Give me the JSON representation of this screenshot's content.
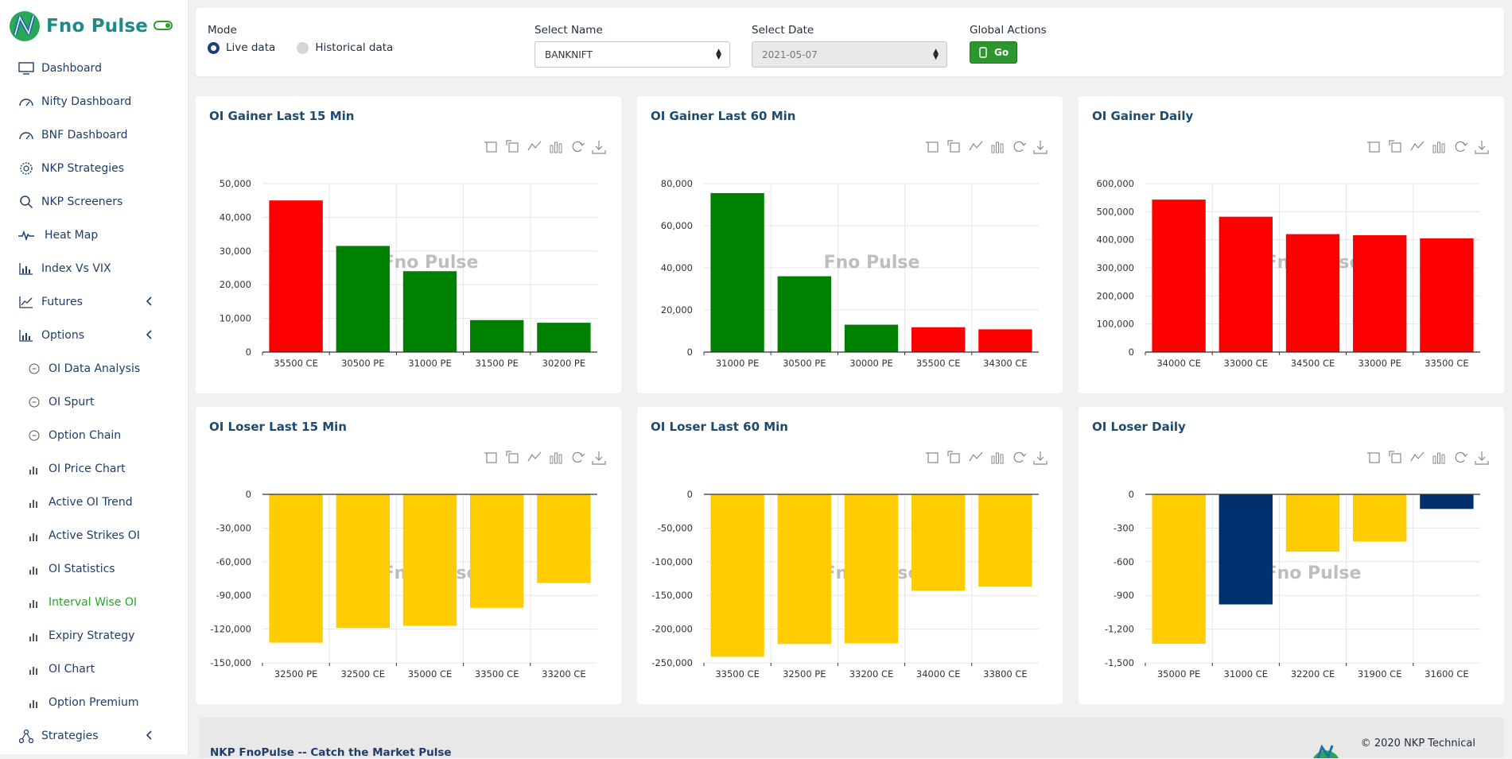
{
  "brand": {
    "name": "Fno Pulse"
  },
  "nav": {
    "dashboard": "Dashboard",
    "nifty": "Nifty Dashboard",
    "bnf": "BNF Dashboard",
    "strategies_nkp": "NKP Strategies",
    "screeners": "NKP Screeners",
    "heatmap": "Heat Map",
    "index_vix": "Index Vs VIX",
    "futures": "Futures",
    "options": "Options",
    "oi_data": "OI Data Analysis",
    "oi_spurt": "OI Spurt",
    "option_chain": "Option Chain",
    "oi_price_chart": "OI Price Chart",
    "active_oi_trend": "Active OI Trend",
    "active_strikes": "Active Strikes OI",
    "oi_stats": "OI Statistics",
    "interval_oi": "Interval Wise OI",
    "expiry_strategy": "Expiry Strategy",
    "oi_chart": "OI Chart",
    "option_premium": "Option Premium",
    "strategies": "Strategies"
  },
  "controls": {
    "mode_label": "Mode",
    "mode_live": "Live data",
    "mode_hist": "Historical data",
    "name_label": "Select Name",
    "name_value": "BANKNIFT",
    "date_label": "Select Date",
    "date_value": "2021-05-07",
    "actions_label": "Global Actions",
    "go_label": "Go"
  },
  "colors": {
    "green": "#008000",
    "red": "#ff0000",
    "yellow": "#ffcc00",
    "navy": "#00306e",
    "title": "#1e4a6e"
  },
  "watermark": "Fno Pulse",
  "chart_data": [
    {
      "type": "bar",
      "title": "OI Gainer Last 15 Min",
      "categories": [
        "35500 CE",
        "30500 PE",
        "31000 PE",
        "31500 PE",
        "30200 PE"
      ],
      "values": [
        45000,
        31500,
        24000,
        9500,
        8700
      ],
      "colors": [
        "#ff0000",
        "#008000",
        "#008000",
        "#008000",
        "#008000"
      ],
      "ylim": [
        0,
        50000
      ],
      "yticks": [
        0,
        10000,
        20000,
        30000,
        40000,
        50000
      ],
      "ytick_labels": [
        "0",
        "10,000",
        "20,000",
        "30,000",
        "40,000",
        "50,000"
      ]
    },
    {
      "type": "bar",
      "title": "OI Gainer Last 60 Min",
      "categories": [
        "31000 PE",
        "30500 PE",
        "30000 PE",
        "35500 CE",
        "34300 CE"
      ],
      "values": [
        75500,
        36000,
        13000,
        11800,
        10800
      ],
      "colors": [
        "#008000",
        "#008000",
        "#008000",
        "#ff0000",
        "#ff0000"
      ],
      "ylim": [
        0,
        80000
      ],
      "yticks": [
        0,
        20000,
        40000,
        60000,
        80000
      ],
      "ytick_labels": [
        "0",
        "20,000",
        "40,000",
        "60,000",
        "80,000"
      ]
    },
    {
      "type": "bar",
      "title": "OI Gainer Daily",
      "categories": [
        "34000 CE",
        "33000 CE",
        "34500 CE",
        "33000 PE",
        "33500 CE"
      ],
      "values": [
        543000,
        482000,
        420000,
        416000,
        405000
      ],
      "colors": [
        "#ff0000",
        "#ff0000",
        "#ff0000",
        "#ff0000",
        "#ff0000"
      ],
      "ylim": [
        0,
        600000
      ],
      "yticks": [
        0,
        100000,
        200000,
        300000,
        400000,
        500000,
        600000
      ],
      "ytick_labels": [
        "0",
        "100,000",
        "200,000",
        "300,000",
        "400,000",
        "500,000",
        "600,000"
      ]
    },
    {
      "type": "bar",
      "title": "OI Loser Last 15 Min",
      "categories": [
        "32500 PE",
        "32500 CE",
        "35000 CE",
        "33500 CE",
        "33200 CE"
      ],
      "values": [
        -132000,
        -119000,
        -117000,
        -101000,
        -79000
      ],
      "colors": [
        "#ffcc00",
        "#ffcc00",
        "#ffcc00",
        "#ffcc00",
        "#ffcc00"
      ],
      "ylim": [
        -150000,
        0
      ],
      "yticks": [
        0,
        -30000,
        -60000,
        -90000,
        -120000,
        -150000
      ],
      "ytick_labels": [
        "0",
        "-30,000",
        "-60,000",
        "-90,000",
        "-120,000",
        "-150,000"
      ]
    },
    {
      "type": "bar",
      "title": "OI Loser Last 60 Min",
      "categories": [
        "33500 CE",
        "32500 PE",
        "33200 CE",
        "34000 CE",
        "33800 CE"
      ],
      "values": [
        -241000,
        -222000,
        -221000,
        -143000,
        -137000
      ],
      "colors": [
        "#ffcc00",
        "#ffcc00",
        "#ffcc00",
        "#ffcc00",
        "#ffcc00"
      ],
      "ylim": [
        -250000,
        0
      ],
      "yticks": [
        0,
        -50000,
        -100000,
        -150000,
        -200000,
        -250000
      ],
      "ytick_labels": [
        "0",
        "-50,000",
        "-100,000",
        "-150,000",
        "-200,000",
        "-250,000"
      ]
    },
    {
      "type": "bar",
      "title": "OI Loser Daily",
      "categories": [
        "35000 PE",
        "31000 CE",
        "32200 CE",
        "31900 CE",
        "31600 CE"
      ],
      "values": [
        -1330,
        -980,
        -510,
        -420,
        -130
      ],
      "colors": [
        "#ffcc00",
        "#00306e",
        "#ffcc00",
        "#ffcc00",
        "#00306e"
      ],
      "ylim": [
        -1500,
        0
      ],
      "yticks": [
        0,
        -300,
        -600,
        -900,
        -1200,
        -1500
      ],
      "ytick_labels": [
        "0",
        "-300",
        "-600",
        "-900",
        "-1,200",
        "-1,500"
      ]
    }
  ],
  "footer": {
    "tagline": "NKP FnoPulse -- Catch the Market Pulse",
    "copyright": "© 2020 NKP Technical"
  }
}
